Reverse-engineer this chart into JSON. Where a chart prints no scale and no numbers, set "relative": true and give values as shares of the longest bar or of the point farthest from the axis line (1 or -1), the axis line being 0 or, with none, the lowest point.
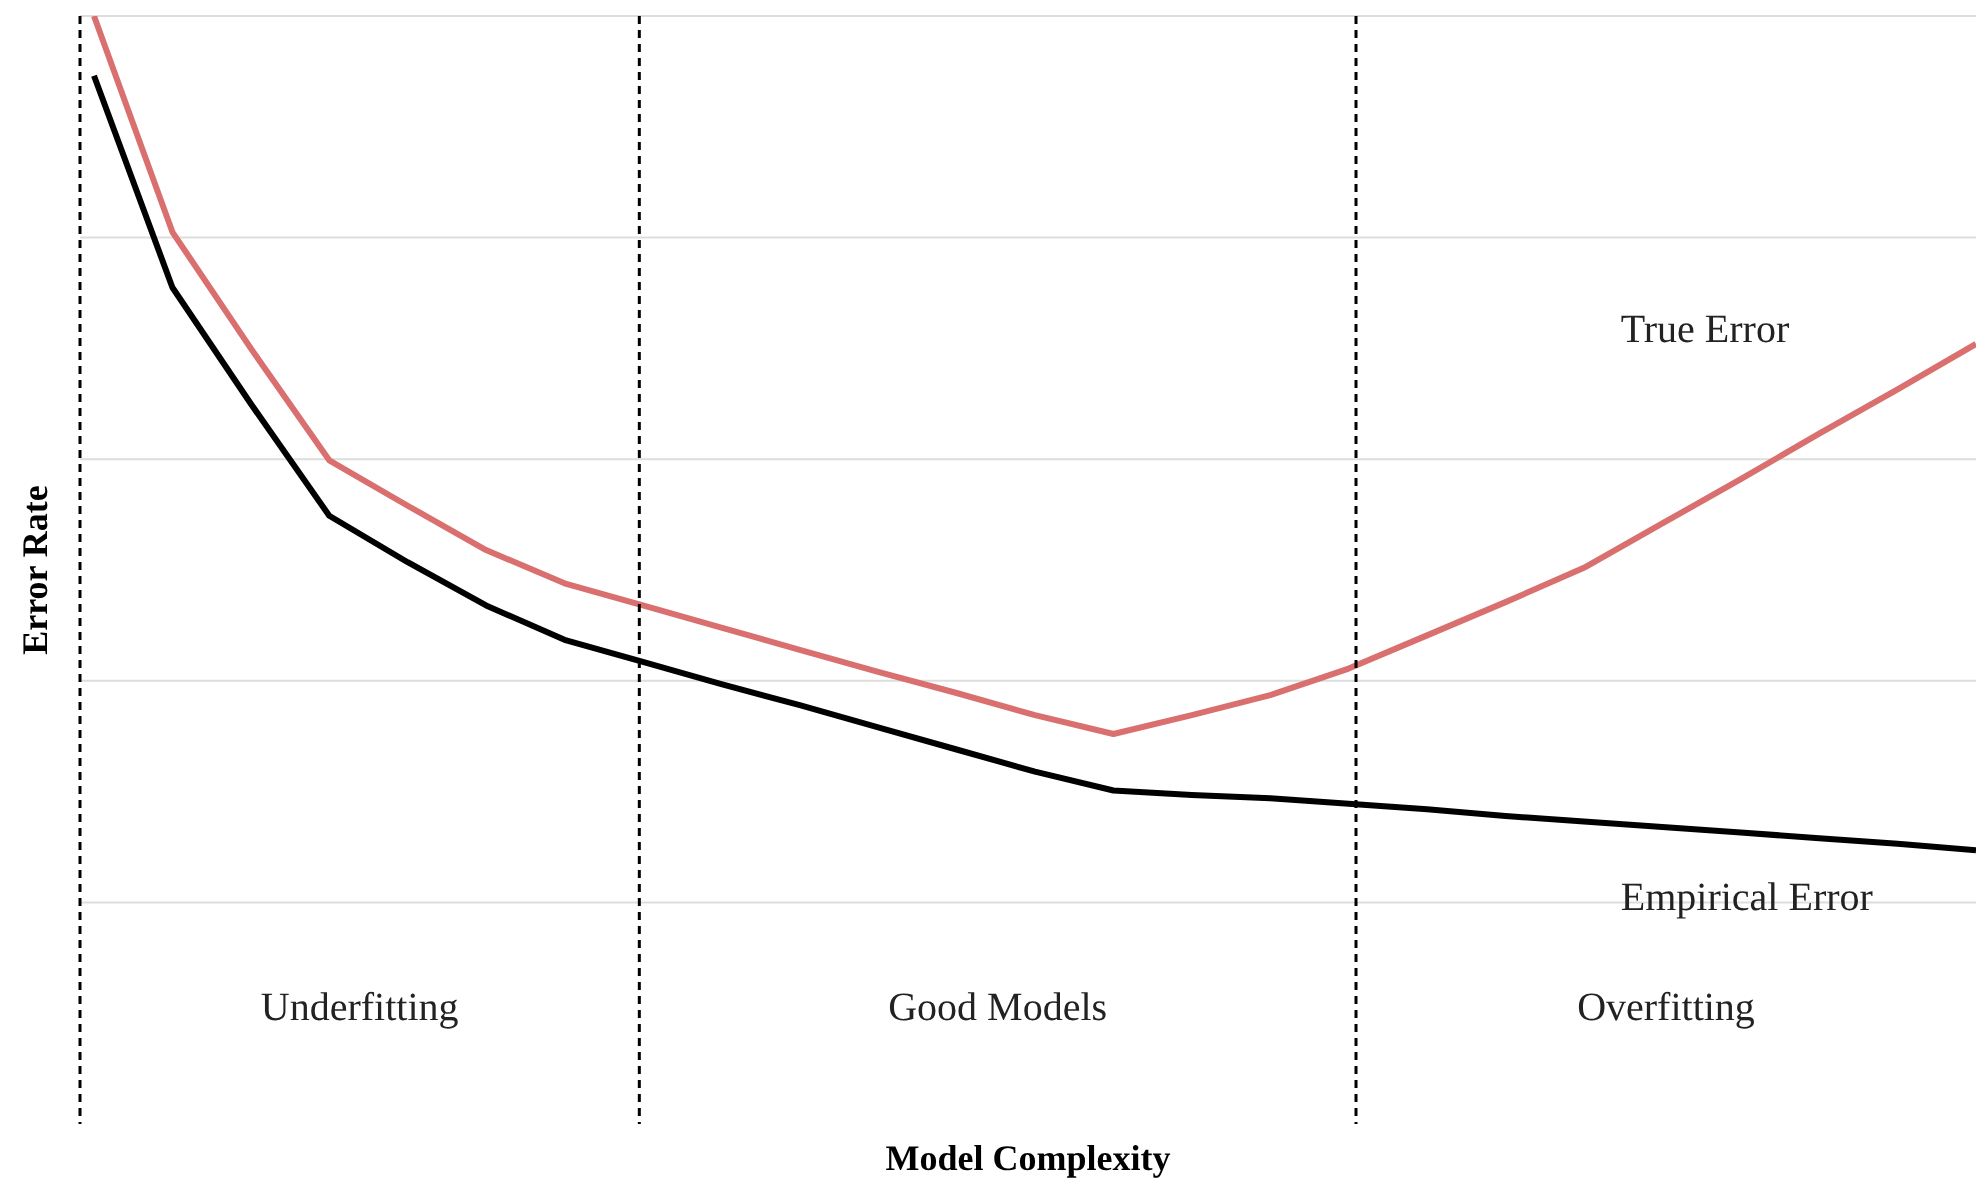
{
  "chart_data": {
    "type": "line",
    "xlabel": "Model Complexity",
    "ylabel": "Error Rate",
    "relative": true,
    "tick_labels": false,
    "grid": "y",
    "legend": false,
    "marker": "none",
    "line_style": "solid",
    "categories": [
      null,
      null,
      null,
      null,
      null,
      null,
      null,
      null,
      null,
      null,
      null,
      null,
      null,
      null,
      null,
      null,
      null,
      null,
      null,
      null,
      null,
      null,
      null,
      null,
      null
    ],
    "series": [
      {
        "name": "True Error",
        "color": "#d9706f",
        "values": [
          1.0,
          0.805,
          0.7,
          0.599,
          0.558,
          0.518,
          0.488,
          0.468,
          0.448,
          0.428,
          0.408,
          0.389,
          0.369,
          0.352,
          0.369,
          0.387,
          0.411,
          0.441,
          0.471,
          0.502,
          0.542,
          0.582,
          0.623,
          0.663,
          0.704
        ]
      },
      {
        "name": "Empirical Error",
        "color": "#000000",
        "values": [
          0.946,
          0.755,
          0.65,
          0.549,
          0.507,
          0.468,
          0.437,
          0.417,
          0.397,
          0.378,
          0.358,
          0.338,
          0.318,
          0.301,
          0.297,
          0.294,
          0.289,
          0.284,
          0.278,
          0.273,
          0.268,
          0.263,
          0.258,
          0.253,
          0.247
        ]
      }
    ],
    "annotations": [
      "Underfitting",
      "Good Models",
      "Overfitting"
    ]
  }
}
